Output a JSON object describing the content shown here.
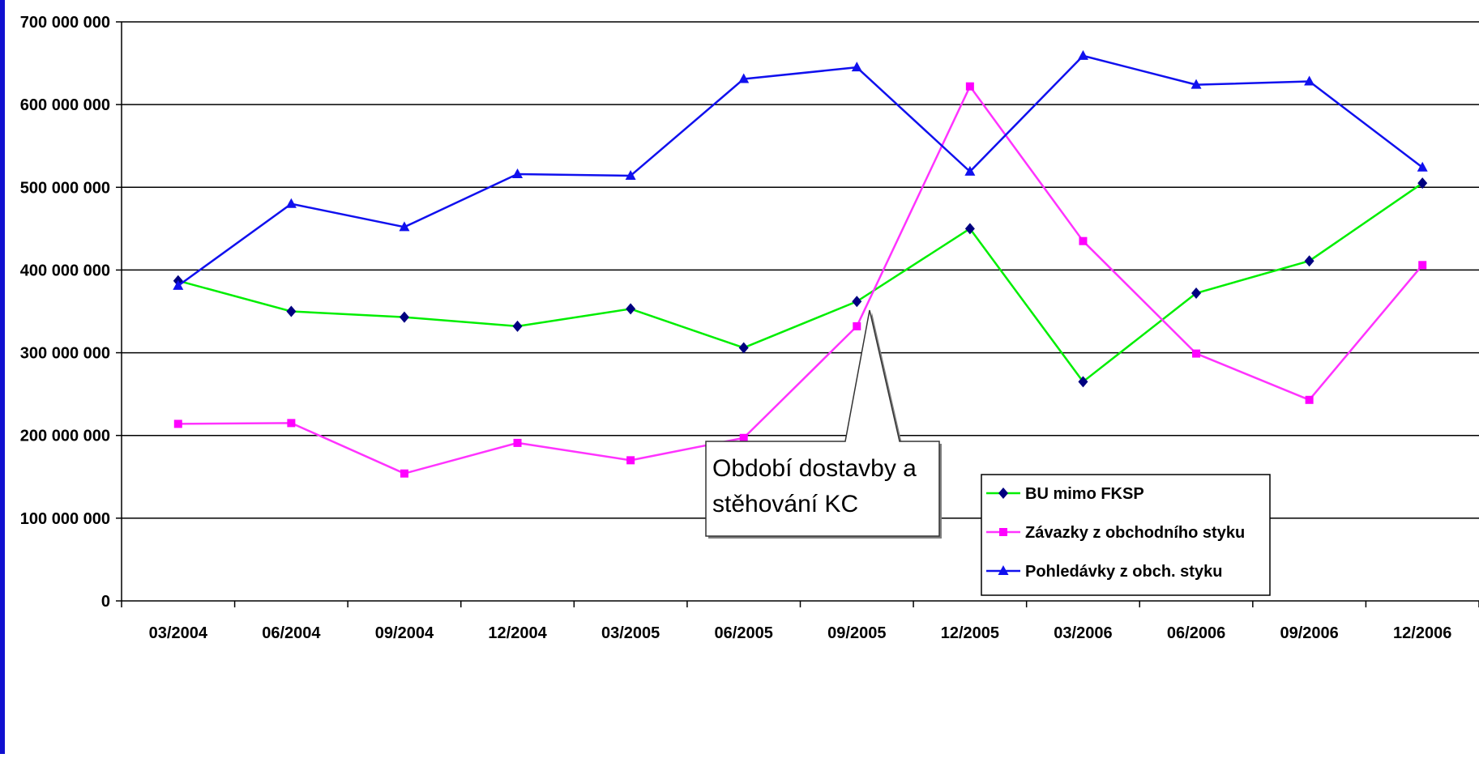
{
  "chart_data": {
    "type": "line",
    "title": "",
    "xlabel": "",
    "ylabel": "",
    "categories": [
      "03/2004",
      "06/2004",
      "09/2004",
      "12/2004",
      "03/2005",
      "06/2005",
      "09/2005",
      "12/2005",
      "03/2006",
      "06/2006",
      "09/2006",
      "12/2006"
    ],
    "ylim": [
      0,
      700000000
    ],
    "y_ticks": [
      0,
      100000000,
      200000000,
      300000000,
      400000000,
      500000000,
      600000000,
      700000000
    ],
    "y_tick_labels": [
      "0",
      "100 000 000",
      "200 000 000",
      "300 000 000",
      "400 000 000",
      "500 000 000",
      "600 000 000",
      "700 000 000"
    ],
    "grid": true,
    "legend_position": "bottom-right",
    "series": [
      {
        "name": "BU mimo FKSP",
        "color": "#00ee00",
        "marker_color": "#000080",
        "marker": "diamond",
        "values": [
          387000000,
          350000000,
          343000000,
          332000000,
          353000000,
          306000000,
          362000000,
          450000000,
          265000000,
          372000000,
          411000000,
          505000000
        ]
      },
      {
        "name": "Závazky z obchodního styku",
        "color": "#ff33ff",
        "marker_color": "#ff00ff",
        "marker": "square",
        "values": [
          214000000,
          215000000,
          154000000,
          191000000,
          170000000,
          197000000,
          332000000,
          622000000,
          435000000,
          299000000,
          243000000,
          406000000
        ]
      },
      {
        "name": "Pohledávky z obch. styku",
        "color": "#1010ee",
        "marker_color": "#1010ee",
        "marker": "triangle",
        "values": [
          381000000,
          480000000,
          452000000,
          516000000,
          514000000,
          631000000,
          645000000,
          519000000,
          659000000,
          624000000,
          628000000,
          524000000
        ]
      }
    ],
    "annotation": {
      "text_lines": [
        "Období dostavby a",
        "stěhování KC"
      ],
      "points_to_category": "12/2005"
    }
  }
}
